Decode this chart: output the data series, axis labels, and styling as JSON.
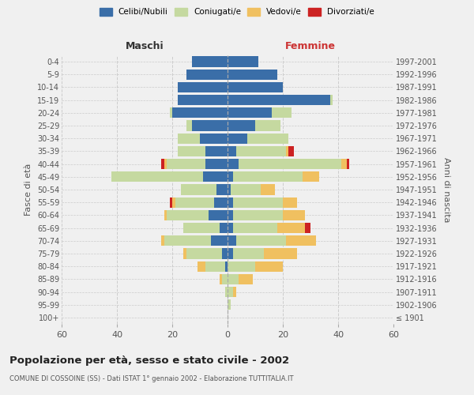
{
  "age_groups": [
    "100+",
    "95-99",
    "90-94",
    "85-89",
    "80-84",
    "75-79",
    "70-74",
    "65-69",
    "60-64",
    "55-59",
    "50-54",
    "45-49",
    "40-44",
    "35-39",
    "30-34",
    "25-29",
    "20-24",
    "15-19",
    "10-14",
    "5-9",
    "0-4"
  ],
  "birth_years": [
    "≤ 1901",
    "1902-1906",
    "1907-1911",
    "1912-1916",
    "1917-1921",
    "1922-1926",
    "1927-1931",
    "1932-1936",
    "1937-1941",
    "1942-1946",
    "1947-1951",
    "1952-1956",
    "1957-1961",
    "1962-1966",
    "1967-1971",
    "1972-1976",
    "1977-1981",
    "1982-1986",
    "1987-1991",
    "1992-1996",
    "1997-2001"
  ],
  "colors": {
    "celibe": "#3a6ea8",
    "coniugato": "#c5d9a0",
    "vedovo": "#f0c060",
    "divorziato": "#cc2222"
  },
  "male": {
    "celibe": [
      0,
      0,
      0,
      0,
      1,
      2,
      6,
      3,
      7,
      5,
      4,
      9,
      8,
      8,
      10,
      13,
      20,
      18,
      18,
      15,
      13
    ],
    "coniugato": [
      0,
      0,
      1,
      2,
      7,
      13,
      17,
      13,
      15,
      14,
      13,
      33,
      14,
      10,
      8,
      2,
      1,
      0,
      0,
      0,
      0
    ],
    "vedovo": [
      0,
      0,
      0,
      1,
      3,
      1,
      1,
      0,
      1,
      1,
      0,
      0,
      1,
      0,
      0,
      0,
      0,
      0,
      0,
      0,
      0
    ],
    "divorziato": [
      0,
      0,
      0,
      0,
      0,
      0,
      0,
      0,
      0,
      1,
      0,
      0,
      1,
      0,
      0,
      0,
      0,
      0,
      0,
      0,
      0
    ]
  },
  "female": {
    "nubile": [
      0,
      0,
      0,
      0,
      0,
      2,
      3,
      2,
      2,
      2,
      1,
      2,
      4,
      3,
      7,
      10,
      16,
      37,
      20,
      18,
      11
    ],
    "coniugata": [
      0,
      1,
      2,
      4,
      10,
      11,
      18,
      16,
      18,
      18,
      11,
      25,
      37,
      18,
      15,
      9,
      7,
      1,
      0,
      0,
      0
    ],
    "vedova": [
      0,
      0,
      1,
      5,
      10,
      12,
      11,
      10,
      8,
      5,
      5,
      6,
      2,
      1,
      0,
      0,
      0,
      0,
      0,
      0,
      0
    ],
    "divorziata": [
      0,
      0,
      0,
      0,
      0,
      0,
      0,
      2,
      0,
      0,
      0,
      0,
      1,
      2,
      0,
      0,
      0,
      0,
      0,
      0,
      0
    ]
  },
  "xlim": 60,
  "title": "Popolazione per età, sesso e stato civile - 2002",
  "subtitle": "COMUNE DI COSSOINE (SS) - Dati ISTAT 1° gennaio 2002 - Elaborazione TUTTITALIA.IT",
  "ylabel": "Fasce di età",
  "ylabel_right": "Anni di nascita",
  "xlabel_left": "Maschi",
  "xlabel_right": "Femmine",
  "background_color": "#f0f0f0",
  "grid_color": "#cccccc"
}
